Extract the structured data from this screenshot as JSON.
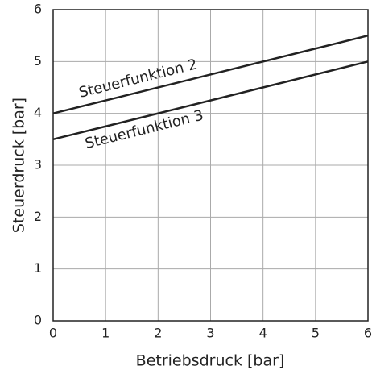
{
  "chart_data": {
    "type": "line",
    "x_label": "Betriebsdruck [bar]",
    "y_label": "Steuerdruck [bar]",
    "x": [
      0,
      6
    ],
    "series": [
      {
        "name": "Steuerfunktion 2",
        "color": "#222222",
        "values": [
          4,
          5.5
        ]
      },
      {
        "name": "Steuerfunktion 3",
        "color": "#222222",
        "values": [
          3.5,
          5
        ]
      }
    ],
    "xlim": [
      0,
      6
    ],
    "ylim": [
      0,
      6
    ],
    "xticks": [
      0,
      1,
      2,
      3,
      4,
      5,
      6
    ],
    "yticks": [
      0,
      1,
      2,
      3,
      4,
      5,
      6
    ],
    "grid": true
  }
}
